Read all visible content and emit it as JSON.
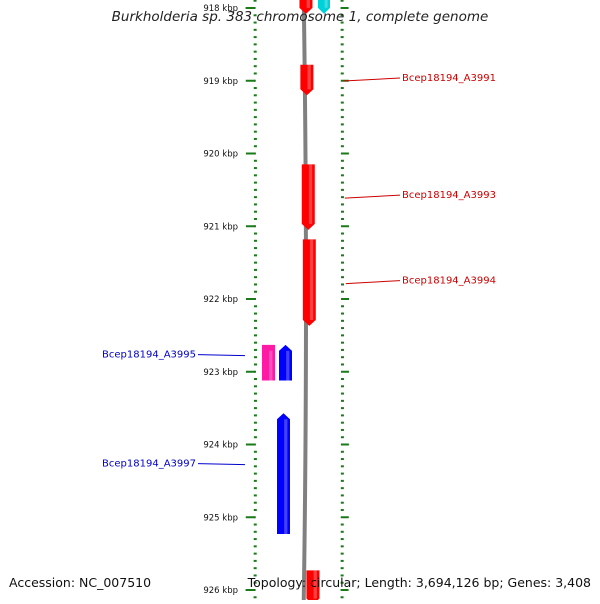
{
  "title": "Burkholderia sp. 383 chromosome 1, complete genome",
  "accession": "Accession: NC_007510",
  "summary": "Topology: circular; Length: 3,694,126 bp; Genes: 3,408",
  "colors": {
    "forward": "#ff0000",
    "reverse": "#0000ff",
    "pink": "#ff1aa6",
    "cyan": "#00d0d8",
    "tick": "#1a7a1a",
    "backbone": "#808080",
    "forward_label": "#cc0000",
    "reverse_label": "#0000cc"
  },
  "ruler": {
    "ticks": [
      {
        "kbp": 918,
        "label": "918 kbp"
      },
      {
        "kbp": 919,
        "label": "919 kbp"
      },
      {
        "kbp": 920,
        "label": "920 kbp"
      },
      {
        "kbp": 921,
        "label": "921 kbp"
      },
      {
        "kbp": 922,
        "label": "922 kbp"
      },
      {
        "kbp": 923,
        "label": "923 kbp"
      },
      {
        "kbp": 924,
        "label": "924 kbp"
      },
      {
        "kbp": 925,
        "label": "925 kbp"
      },
      {
        "kbp": 926,
        "label": "926 kbp"
      }
    ]
  },
  "features": [
    {
      "start_kbp": 917.85,
      "end_kbp": 918.08,
      "strand": "+",
      "color": "forward",
      "label": ""
    },
    {
      "start_kbp": 917.85,
      "end_kbp": 918.08,
      "strand": "+",
      "color": "cyan",
      "label": ""
    },
    {
      "start_kbp": 918.78,
      "end_kbp": 919.2,
      "strand": "+",
      "color": "forward",
      "label": "Bcep18194_A3991"
    },
    {
      "start_kbp": 920.15,
      "end_kbp": 921.05,
      "strand": "+",
      "color": "forward",
      "label": "Bcep18194_A3993"
    },
    {
      "start_kbp": 921.18,
      "end_kbp": 922.37,
      "strand": "+",
      "color": "forward",
      "label": "Bcep18194_A3994"
    },
    {
      "start_kbp": 922.63,
      "end_kbp": 923.12,
      "strand": "-",
      "color": "pink",
      "label": "Bcep18194_A3995"
    },
    {
      "start_kbp": 922.63,
      "end_kbp": 923.12,
      "strand": "-",
      "color": "reverse",
      "label": ""
    },
    {
      "start_kbp": 923.57,
      "end_kbp": 925.23,
      "strand": "-",
      "color": "reverse",
      "label": "Bcep18194_A3997"
    },
    {
      "start_kbp": 925.73,
      "end_kbp": 926.2,
      "strand": "+",
      "color": "forward",
      "label": ""
    }
  ]
}
